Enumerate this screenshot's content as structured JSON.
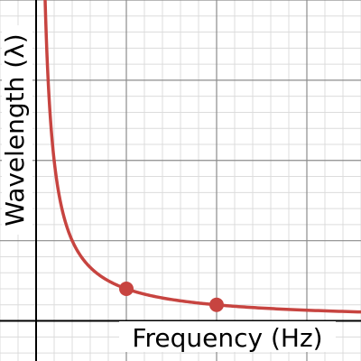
{
  "chart_data": {
    "type": "line",
    "xlabel": "Frequency (Hz)",
    "ylabel": "Wavelength (λ)",
    "xlim": [
      -0.2,
      1.8
    ],
    "ylim": [
      -0.25,
      2.0
    ],
    "grid": true,
    "series": [
      {
        "function": "y = k / x",
        "k": 0.1,
        "x_start": 0.032,
        "x_end": 1.8,
        "color": "#c74440"
      }
    ],
    "points": [
      {
        "x": 0.5,
        "y": 0.2,
        "color": "#c74440"
      },
      {
        "x": 1.0,
        "y": 0.1,
        "color": "#c74440"
      }
    ],
    "colors": {
      "minor_grid": "#dcdcdc",
      "major_grid": "#8c8c8c",
      "axis": "#000000"
    }
  }
}
